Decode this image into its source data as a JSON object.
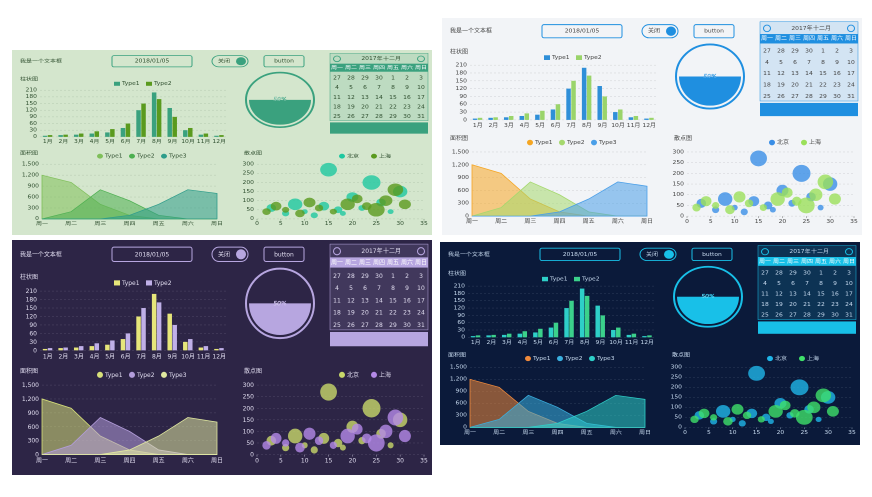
{
  "textbox_label": "我是一个文本框",
  "date": "2018/01/05",
  "toggle_label": "关闭",
  "button": "button",
  "calendar": {
    "year": "2017年",
    "month": "十二月",
    "weekdays": [
      "周一",
      "周二",
      "周三",
      "周四",
      "周五",
      "周六",
      "周日"
    ],
    "days": [
      [
        27,
        28,
        29,
        30,
        1,
        2,
        3
      ],
      [
        4,
        5,
        6,
        7,
        8,
        9,
        10
      ],
      [
        11,
        12,
        13,
        14,
        15,
        16,
        17
      ],
      [
        18,
        19,
        20,
        21,
        22,
        23,
        24
      ],
      [
        25,
        26,
        27,
        28,
        29,
        30,
        31
      ]
    ]
  },
  "bar_chart": {
    "type": "bar",
    "title": "柱状图",
    "categories": [
      "1月",
      "2月",
      "3月",
      "4月",
      "5月",
      "6月",
      "7月",
      "8月",
      "9月",
      "10月",
      "11月",
      "12月"
    ],
    "series": [
      {
        "name": "Type1",
        "values": [
          5,
          8,
          10,
          15,
          20,
          40,
          120,
          200,
          130,
          30,
          10,
          5
        ]
      },
      {
        "name": "Type2",
        "values": [
          8,
          10,
          15,
          25,
          35,
          60,
          150,
          170,
          90,
          40,
          15,
          8
        ]
      }
    ],
    "ylim": [
      0,
      210
    ],
    "yticks": [
      0,
      30,
      60,
      90,
      120,
      150,
      180,
      210
    ],
    "grid": true
  },
  "gauge": {
    "type": "gauge",
    "value": 50,
    "value_label": "50%"
  },
  "area_chart": {
    "type": "area",
    "title": "面积图",
    "categories": [
      "周一",
      "周二",
      "周三",
      "周四",
      "周五",
      "周六",
      "周日"
    ],
    "series": [
      {
        "name": "Type1",
        "values": [
          1200,
          1000,
          400,
          100,
          0,
          0,
          0
        ]
      },
      {
        "name": "Type2",
        "values": [
          0,
          200,
          800,
          500,
          100,
          0,
          0
        ]
      },
      {
        "name": "Type3",
        "values": [
          0,
          0,
          0,
          100,
          400,
          800,
          700
        ]
      }
    ],
    "ylim": [
      0,
      1500
    ],
    "yticks": [
      0,
      300,
      600,
      900,
      {
        "value": 1200,
        "label": "1,200"
      },
      {
        "value": 1500,
        "label": "1,500"
      }
    ]
  },
  "scatter_chart": {
    "type": "scatter",
    "title": "散点图",
    "series": [
      {
        "name": "北京",
        "x": [
          3,
          6,
          8,
          10,
          12,
          14,
          15,
          17,
          18,
          20,
          22,
          24,
          26,
          28,
          30
        ],
        "y": [
          60,
          30,
          80,
          40,
          20,
          70,
          270,
          50,
          30,
          120,
          60,
          200,
          90,
          40,
          150
        ],
        "size": [
          8,
          6,
          12,
          5,
          6,
          9,
          14,
          7,
          5,
          10,
          6,
          15,
          8,
          5,
          12
        ]
      },
      {
        "name": "上海",
        "x": [
          2,
          4,
          6,
          9,
          11,
          13,
          16,
          19,
          21,
          23,
          25,
          27,
          29,
          31
        ],
        "y": [
          40,
          70,
          50,
          30,
          90,
          60,
          40,
          80,
          110,
          70,
          50,
          100,
          160,
          80
        ],
        "size": [
          7,
          9,
          6,
          8,
          10,
          7,
          6,
          12,
          9,
          8,
          14,
          11,
          13,
          10
        ]
      }
    ],
    "xlim": [
      0,
      35
    ],
    "xticks": [
      0,
      5,
      10,
      15,
      20,
      25,
      30,
      35
    ],
    "ylim": [
      0,
      300
    ],
    "yticks": [
      0,
      50,
      100,
      150,
      200,
      250,
      300
    ]
  },
  "themes": [
    {
      "bg": "#d4e6cd",
      "fg": "#2f4f2f",
      "accent": "#3aa17e",
      "bar": [
        "#3aa17e",
        "#5a9a1e"
      ],
      "area": [
        "#7fbf5a",
        "#4caf50",
        "#2e9c8a"
      ],
      "scatter": [
        "#1ec8a0",
        "#5a9a1e"
      ]
    },
    {
      "bg": "#f2f4f7",
      "fg": "#444444",
      "accent": "#1f8fe0",
      "bar": [
        "#2f8fd8",
        "#9ad46a"
      ],
      "area": [
        "#f5a623",
        "#a5d86e",
        "#4a9fe8"
      ],
      "scatter": [
        "#3a8ee6",
        "#9be05a"
      ]
    },
    {
      "bg": "#2d2546",
      "fg": "#e0dcef",
      "accent": "#b7a6e0",
      "bar": [
        "#e6e67a",
        "#c0b0e8"
      ],
      "area": [
        "#d7e07a",
        "#b39ddb",
        "#e0e8a0"
      ],
      "scatter": [
        "#c8d86a",
        "#b48ae8"
      ]
    },
    {
      "bg": "#0b1a3a",
      "fg": "#c8dbf0",
      "accent": "#18c0e8",
      "bar": [
        "#2ecfc8",
        "#3bd18b"
      ],
      "area": [
        "#f08a3c",
        "#3ab0e0",
        "#2ecfc8"
      ],
      "scatter": [
        "#1fb5e8",
        "#3fe06a"
      ]
    }
  ]
}
